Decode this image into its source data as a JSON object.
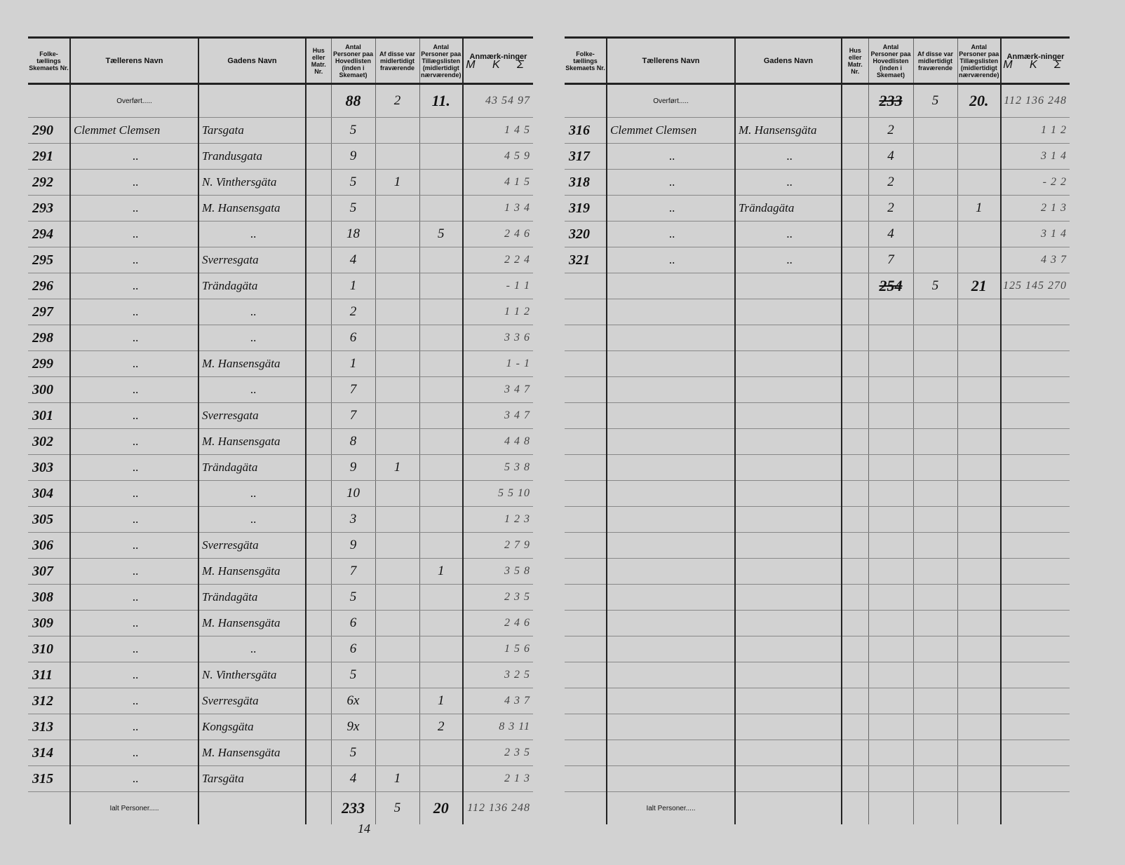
{
  "headers": {
    "nr": "Folke-tællings Skemaets Nr.",
    "teller": "Tællerens Navn",
    "street": "Gadens Navn",
    "house": "Hus eller Matr. Nr.",
    "persons": "Antal Personer paa Hovedlisten (inden i Skemaet)",
    "absent": "Af disse var midlertidigt fraværende",
    "supp": "Antal Personer paa Tillægslisten (midlertidigt nærværende)",
    "remarks": "Anmærk-ninger",
    "remarks_sub": "M K Σ"
  },
  "labels": {
    "carried": "Overført.....",
    "total": "Ialt Personer....."
  },
  "left": {
    "carried": {
      "persons": "88",
      "absent": "2",
      "supp": "11.",
      "mk": "43 54 97"
    },
    "rows": [
      {
        "nr": "290",
        "teller": "Clemmet Clemsen",
        "street": "Tarsgata",
        "persons": "5",
        "absent": "",
        "supp": "",
        "mk": "1 4 5"
      },
      {
        "nr": "291",
        "teller": "..",
        "street": "Trandusgata",
        "persons": "9",
        "absent": "",
        "supp": "",
        "mk": "4 5 9"
      },
      {
        "nr": "292",
        "teller": "..",
        "street": "N. Vinthersgäta",
        "persons": "5",
        "absent": "1",
        "supp": "",
        "mk": "4 1 5"
      },
      {
        "nr": "293",
        "teller": "..",
        "street": "M. Hansensgata",
        "persons": "5",
        "absent": "",
        "supp": "",
        "mk": "1 3 4"
      },
      {
        "nr": "294",
        "teller": "..",
        "street": "..",
        "persons": "18",
        "absent": "",
        "supp": "5",
        "mk": "2 4 6"
      },
      {
        "nr": "295",
        "teller": "..",
        "street": "Sverresgata",
        "persons": "4",
        "absent": "",
        "supp": "",
        "mk": "2 2 4"
      },
      {
        "nr": "296",
        "teller": "..",
        "street": "Trändagäta",
        "persons": "1",
        "absent": "",
        "supp": "",
        "mk": "- 1 1"
      },
      {
        "nr": "297",
        "teller": "..",
        "street": "..",
        "persons": "2",
        "absent": "",
        "supp": "",
        "mk": "1 1 2"
      },
      {
        "nr": "298",
        "teller": "..",
        "street": "..",
        "persons": "6",
        "absent": "",
        "supp": "",
        "mk": "3 3 6"
      },
      {
        "nr": "299",
        "teller": "..",
        "street": "M. Hansensgäta",
        "persons": "1",
        "absent": "",
        "supp": "",
        "mk": "1 - 1"
      },
      {
        "nr": "300",
        "teller": "..",
        "street": "..",
        "persons": "7",
        "absent": "",
        "supp": "",
        "mk": "3 4 7"
      },
      {
        "nr": "301",
        "teller": "..",
        "street": "Sverresgata",
        "persons": "7",
        "absent": "",
        "supp": "",
        "mk": "3 4 7"
      },
      {
        "nr": "302",
        "teller": "..",
        "street": "M. Hansensgata",
        "persons": "8",
        "absent": "",
        "supp": "",
        "mk": "4 4 8"
      },
      {
        "nr": "303",
        "teller": "..",
        "street": "Trändagäta",
        "persons": "9",
        "absent": "1",
        "supp": "",
        "mk": "5 3 8"
      },
      {
        "nr": "304",
        "teller": "..",
        "street": "..",
        "persons": "10",
        "absent": "",
        "supp": "",
        "mk": "5 5 10"
      },
      {
        "nr": "305",
        "teller": "..",
        "street": "..",
        "persons": "3",
        "absent": "",
        "supp": "",
        "mk": "1 2 3"
      },
      {
        "nr": "306",
        "teller": "..",
        "street": "Sverresgäta",
        "persons": "9",
        "absent": "",
        "supp": "",
        "mk": "2 7 9"
      },
      {
        "nr": "307",
        "teller": "..",
        "street": "M. Hansensgäta",
        "persons": "7",
        "absent": "",
        "supp": "1",
        "mk": "3 5 8"
      },
      {
        "nr": "308",
        "teller": "..",
        "street": "Trändagäta",
        "persons": "5",
        "absent": "",
        "supp": "",
        "mk": "2 3 5"
      },
      {
        "nr": "309",
        "teller": "..",
        "street": "M. Hansensgäta",
        "persons": "6",
        "absent": "",
        "supp": "",
        "mk": "2 4 6"
      },
      {
        "nr": "310",
        "teller": "..",
        "street": "..",
        "persons": "6",
        "absent": "",
        "supp": "",
        "mk": "1 5 6"
      },
      {
        "nr": "311",
        "teller": "..",
        "street": "N. Vinthersgäta",
        "persons": "5",
        "absent": "",
        "supp": "",
        "mk": "3 2 5"
      },
      {
        "nr": "312",
        "teller": "..",
        "street": "Sverresgäta",
        "persons": "6x",
        "absent": "",
        "supp": "1",
        "mk": "4 3 7"
      },
      {
        "nr": "313",
        "teller": "..",
        "street": "Kongsgäta",
        "persons": "9x",
        "absent": "",
        "supp": "2",
        "mk": "8 3 11"
      },
      {
        "nr": "314",
        "teller": "..",
        "street": "M. Hansensgäta",
        "persons": "5",
        "absent": "",
        "supp": "",
        "mk": "2 3 5"
      },
      {
        "nr": "315",
        "teller": "..",
        "street": "Tarsgäta",
        "persons": "4",
        "absent": "1",
        "supp": "",
        "mk": "2 1 3"
      }
    ],
    "total": {
      "persons": "233",
      "absent": "5",
      "supp": "20",
      "mk": "112 136 248"
    },
    "below_total": "14"
  },
  "right": {
    "carried": {
      "persons_old": "233",
      "absent": "5",
      "supp": "20.",
      "mk": "112 136 248"
    },
    "rows": [
      {
        "nr": "316",
        "teller": "Clemmet Clemsen",
        "street": "M. Hansensgäta",
        "persons": "2",
        "absent": "",
        "supp": "",
        "mk": "1 1 2"
      },
      {
        "nr": "317",
        "teller": "..",
        "street": "..",
        "persons": "4",
        "absent": "",
        "supp": "",
        "mk": "3 1 4"
      },
      {
        "nr": "318",
        "teller": "..",
        "street": "..",
        "persons": "2",
        "absent": "",
        "supp": "",
        "mk": "- 2 2"
      },
      {
        "nr": "319",
        "teller": "..",
        "street": "Trändagäta",
        "persons": "2",
        "absent": "",
        "supp": "1",
        "mk": "2 1 3"
      },
      {
        "nr": "320",
        "teller": "..",
        "street": "..",
        "persons": "4",
        "absent": "",
        "supp": "",
        "mk": "3 1 4"
      },
      {
        "nr": "321",
        "teller": "..",
        "street": "..",
        "persons": "7",
        "absent": "",
        "supp": "",
        "mk": "4 3 7"
      }
    ],
    "subtotal": {
      "persons": "254",
      "absent": "5",
      "supp": "21",
      "mk": "125 145 270"
    }
  }
}
